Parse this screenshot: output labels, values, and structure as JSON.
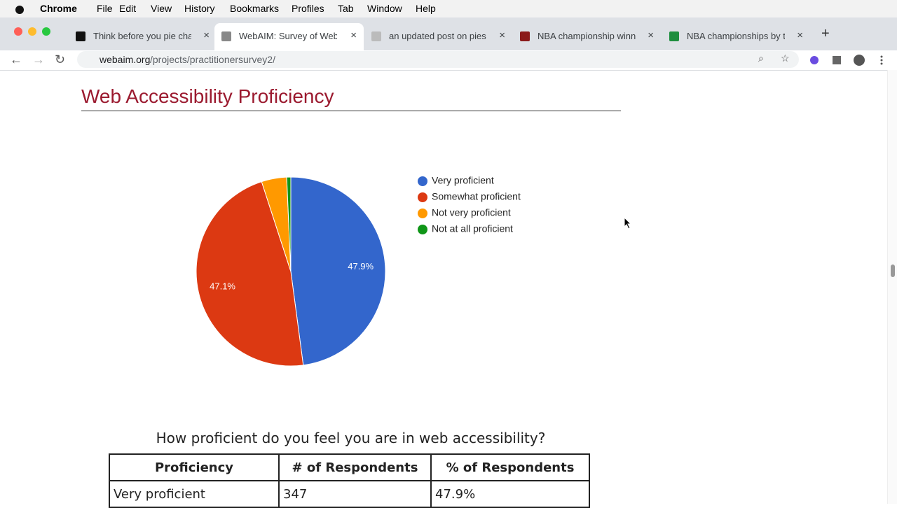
{
  "menubar": {
    "app": "Chrome",
    "items": [
      "File",
      "Edit",
      "View",
      "History",
      "Bookmarks",
      "Profiles",
      "Tab",
      "Window",
      "Help"
    ]
  },
  "tabs": [
    {
      "title": "Think before you pie chart"
    },
    {
      "title": "WebAIM: Survey of Web A"
    },
    {
      "title": "an updated post on pies —"
    },
    {
      "title": "NBA championship winner"
    },
    {
      "title": "NBA championships by te"
    }
  ],
  "address": {
    "host": "webaim.org",
    "path": "/projects/practitionersurvey2/"
  },
  "heading": "Web Accessibility Proficiency",
  "chart_data": {
    "type": "pie",
    "categories": [
      "Very proficient",
      "Somewhat proficient",
      "Not very proficient",
      "Not at all proficient"
    ],
    "values": [
      47.9,
      47.1,
      4.3,
      0.7
    ],
    "value_labels": [
      "47.9%",
      "47.1%",
      null,
      null
    ],
    "colors": [
      "#3366cc",
      "#dc3912",
      "#ff9900",
      "#109618"
    ]
  },
  "table": {
    "caption": "How proficient do you feel you are in web accessibility?",
    "header": [
      "Proficiency",
      "# of Respondents",
      "% of Respondents"
    ],
    "rows": [
      [
        "Very proficient",
        "347",
        "47.9%"
      ]
    ]
  }
}
